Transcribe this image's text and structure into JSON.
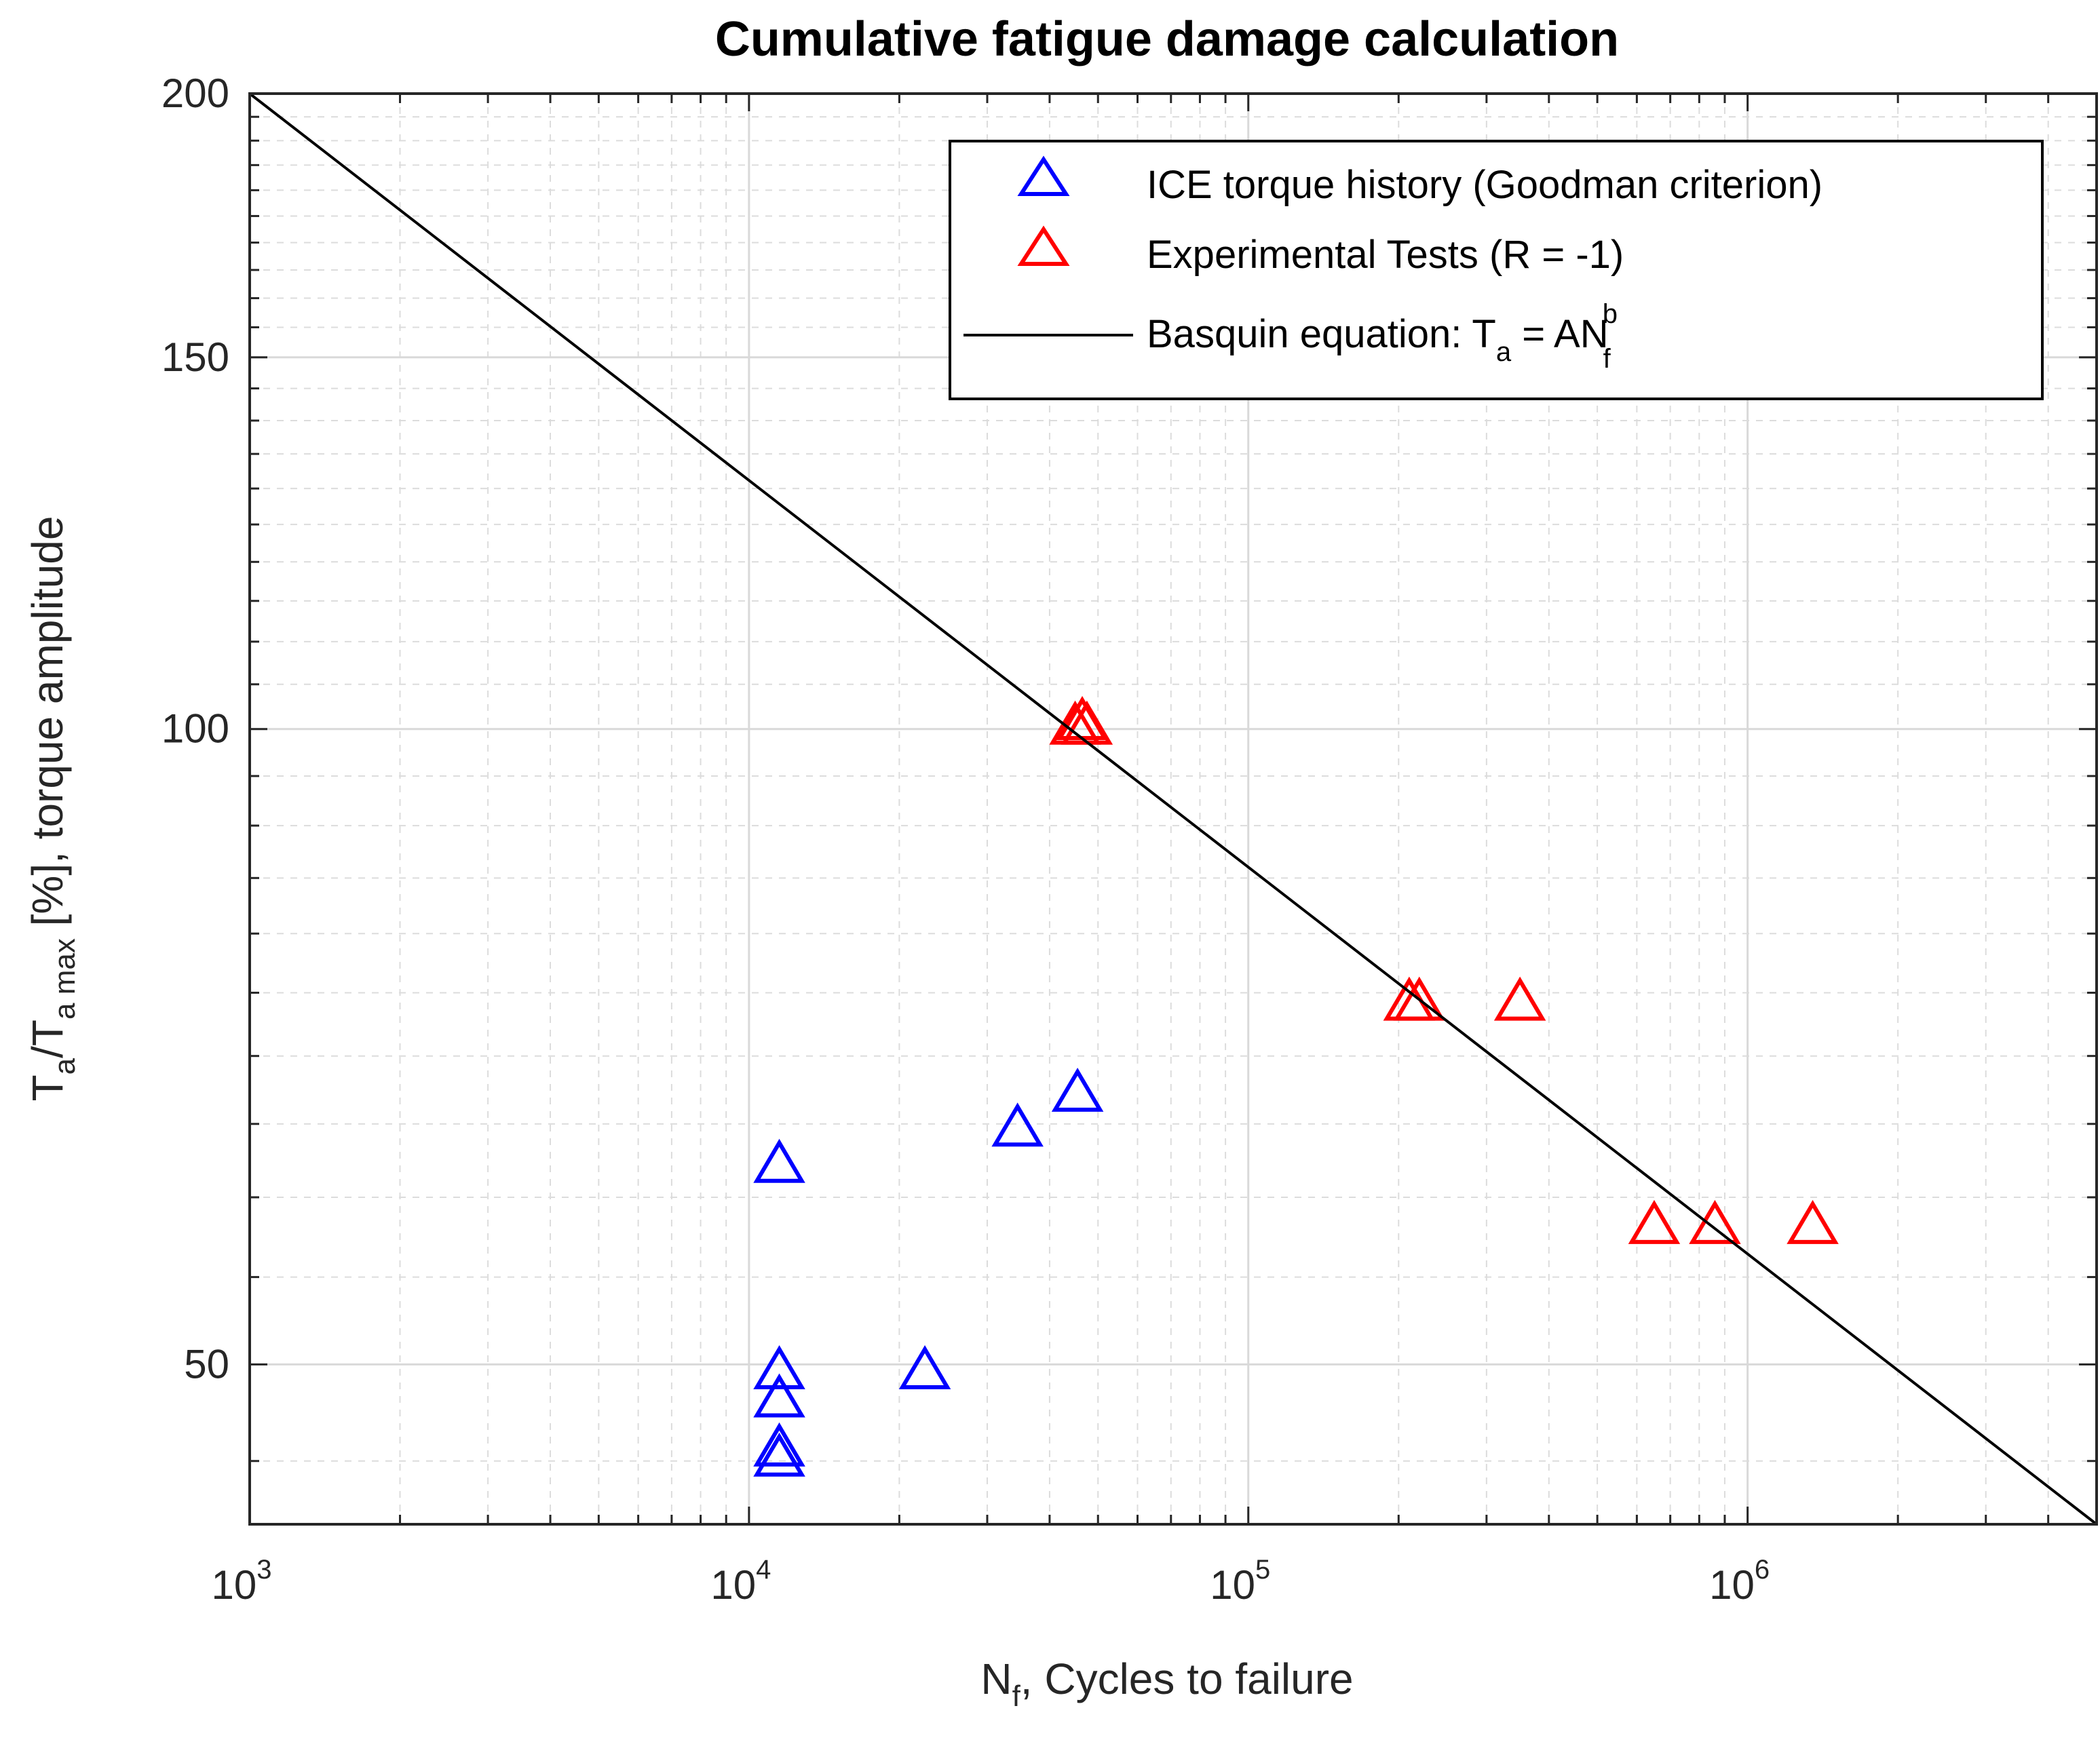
{
  "chart_data": {
    "type": "scatter",
    "title": "Cumulative fatigue damage calculation",
    "xlabel": {
      "main": "N",
      "sub": "f",
      "rest": ", Cycles to failure"
    },
    "ylabel": {
      "p1": "T",
      "s1": "a",
      "p2": "/T",
      "s2": "a max",
      "p3": " [%], torque amplitude"
    },
    "xscale": "log",
    "yscale": "log",
    "xlim": [
      1000,
      5000000
    ],
    "ylim": [
      42,
      200
    ],
    "grid": true,
    "x_ticks": [
      {
        "base": "10",
        "exp": "3",
        "value": 1000
      },
      {
        "base": "10",
        "exp": "4",
        "value": 10000
      },
      {
        "base": "10",
        "exp": "5",
        "value": 100000
      },
      {
        "base": "10",
        "exp": "6",
        "value": 1000000
      }
    ],
    "y_ticks": [
      {
        "label": "50",
        "value": 50
      },
      {
        "label": "100",
        "value": 100
      },
      {
        "label": "150",
        "value": 150
      },
      {
        "label": "200",
        "value": 200
      }
    ],
    "legend_position": "top-right",
    "series": [
      {
        "name": "ICE torque history (Goodman criterion)",
        "marker": "triangle",
        "color": "#0000ff",
        "points": [
          {
            "x": 11500,
            "y": 62
          },
          {
            "x": 11500,
            "y": 49.5
          },
          {
            "x": 11500,
            "y": 48
          },
          {
            "x": 11500,
            "y": 45.5
          },
          {
            "x": 11500,
            "y": 45
          },
          {
            "x": 22500,
            "y": 49.5
          },
          {
            "x": 34500,
            "y": 64.5
          },
          {
            "x": 45500,
            "y": 67
          }
        ]
      },
      {
        "name": "Experimental Tests (R = -1)",
        "marker": "triangle",
        "color": "#ff0000",
        "points": [
          {
            "x": 45000,
            "y": 100
          },
          {
            "x": 46500,
            "y": 100.5
          },
          {
            "x": 47500,
            "y": 100
          },
          {
            "x": 210000,
            "y": 74
          },
          {
            "x": 220000,
            "y": 74
          },
          {
            "x": 350000,
            "y": 74
          },
          {
            "x": 650000,
            "y": 58
          },
          {
            "x": 860000,
            "y": 58
          },
          {
            "x": 1350000,
            "y": 58
          }
        ]
      },
      {
        "name": "Basquin equation: T = AN",
        "legend_parts": {
          "pre": "Basquin equation: T",
          "sub1": "a",
          "mid": " = AN",
          "sub2": "f",
          "sup": "b"
        },
        "type": "line",
        "color": "#000000",
        "points": [
          {
            "x": 1000,
            "y": 200
          },
          {
            "x": 5000000,
            "y": 42
          }
        ]
      }
    ]
  }
}
